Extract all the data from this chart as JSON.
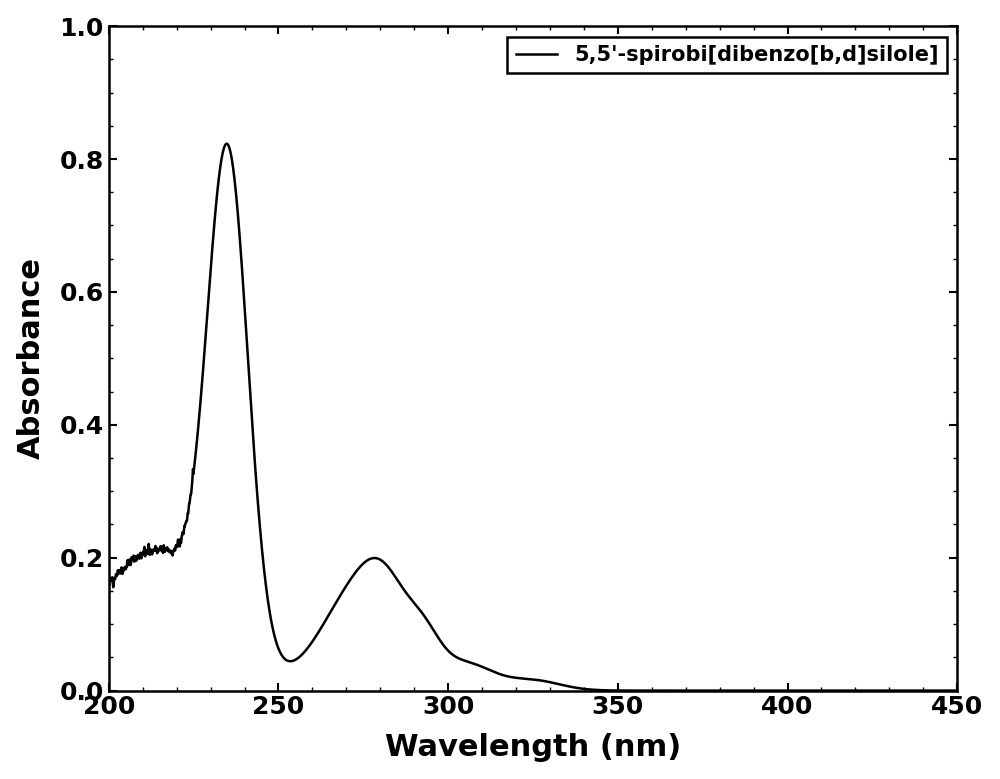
{
  "xlabel": "Wavelength (nm)",
  "ylabel": "Absorbance",
  "legend_label": "5,5'-spirobi[dibenzo[b,d]silole]",
  "xlim": [
    200,
    450
  ],
  "ylim": [
    0.0,
    1.0
  ],
  "xticks": [
    200,
    250,
    300,
    350,
    400,
    450
  ],
  "yticks": [
    0.0,
    0.2,
    0.4,
    0.6,
    0.8,
    1.0
  ],
  "line_color": "#000000",
  "line_width": 1.8,
  "background_color": "#ffffff",
  "figsize": [
    10.0,
    7.79
  ],
  "dpi": 100
}
